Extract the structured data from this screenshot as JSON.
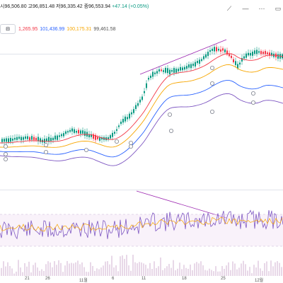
{
  "header": {
    "ohlc_text": "시96,506.80 고96,851.48 저96,335.42 종96,553.94",
    "change_text": "+47.14 (+0.05%)"
  },
  "ma_legend": {
    "button_label": "",
    "values": [
      {
        "text": "1,265.95",
        "color": "#f23645"
      },
      {
        "text": "101,436.99",
        "color": "#2962ff"
      },
      {
        "text": "100,175.31",
        "color": "#f7a600"
      },
      {
        "text": "99,461.58",
        "color": "#555555"
      }
    ]
  },
  "toolbar": {
    "icons": [
      "brush-icon",
      "collapse-icon",
      "more-icon",
      "maximize-icon"
    ]
  },
  "xaxis": {
    "ticks": [
      "21",
      "26",
      "11월",
      "6",
      "11",
      "18",
      "25",
      "12월"
    ]
  },
  "colors": {
    "up": "#089981",
    "down": "#f23645",
    "ma_red": "#f23645",
    "ma_blue": "#2962ff",
    "ma_orange": "#f7a600",
    "ma_purple": "#7e57c2",
    "trend_line": "#9c27b0",
    "rsi_line": "#7e57c2",
    "rsi_fill": "#e1bee7"
  }
}
